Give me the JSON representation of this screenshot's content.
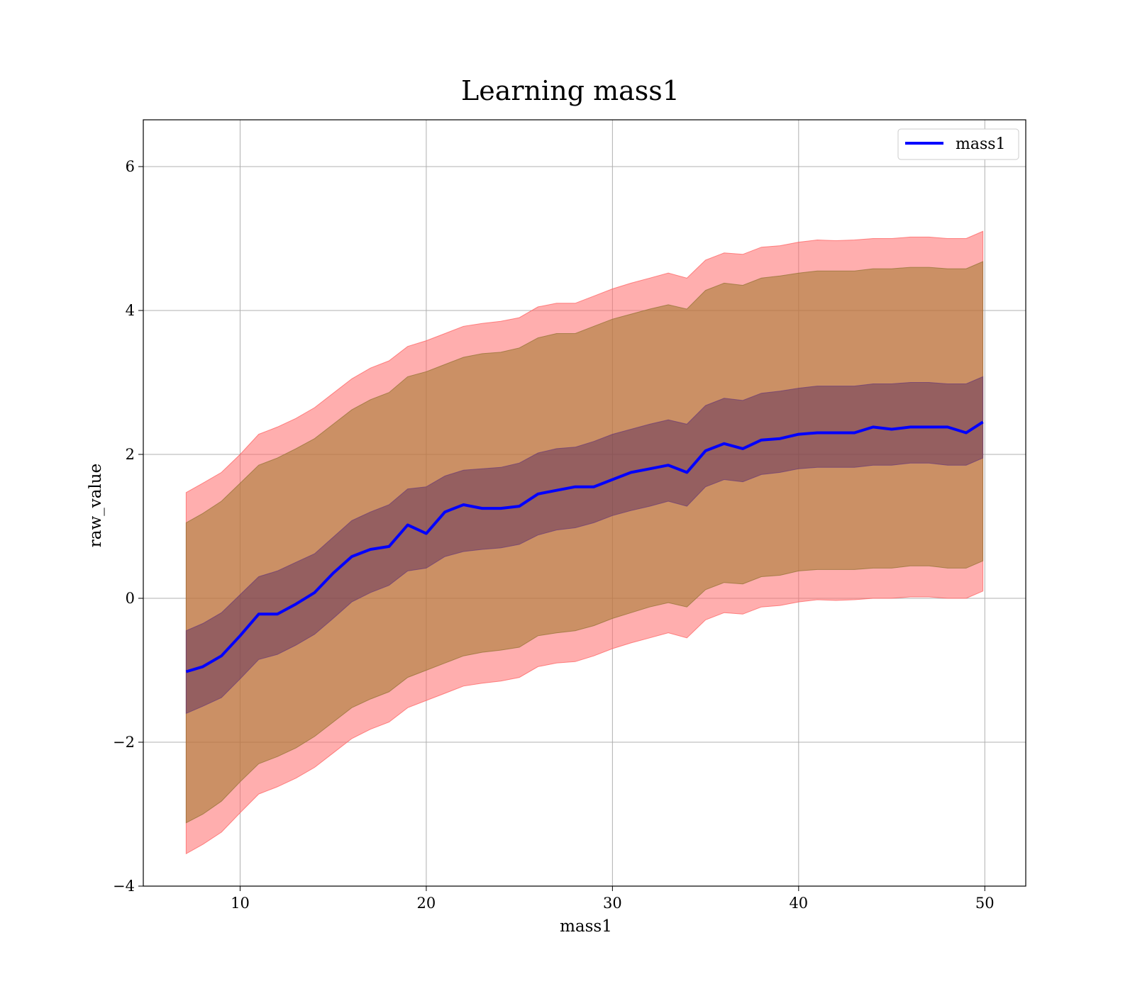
{
  "chart_data": {
    "type": "area",
    "title": "Learning mass1",
    "xlabel": "mass1",
    "ylabel": "raw_value",
    "xlim": [
      4.8,
      52.2
    ],
    "ylim": [
      -4.0,
      6.65
    ],
    "xticks": [
      10,
      20,
      30,
      40,
      50
    ],
    "yticks": [
      -4,
      -2,
      0,
      2,
      4,
      6
    ],
    "xtick_labels": [
      "10",
      "20",
      "30",
      "40",
      "50"
    ],
    "ytick_labels": [
      "−4",
      "−2",
      "0",
      "2",
      "4",
      "6"
    ],
    "grid": true,
    "legend": {
      "position": "top-right",
      "entries": [
        "mass1"
      ]
    },
    "colors": {
      "line": "#0000ff",
      "outer_band": "#ff6b6b",
      "middle_band": "#a0782a",
      "inner_band": "#4a1c5a",
      "grid": "#b0b0b0"
    },
    "x": [
      7.1,
      8,
      9,
      10,
      11,
      12,
      13,
      14,
      15,
      16,
      17,
      18,
      19,
      20,
      21,
      22,
      23,
      24,
      25,
      26,
      27,
      28,
      29,
      30,
      31,
      32,
      33,
      34,
      35,
      36,
      37,
      38,
      39,
      40,
      41,
      42,
      43,
      44,
      45,
      46,
      47,
      48,
      49,
      49.9
    ],
    "series": [
      {
        "name": "mass1",
        "role": "mean",
        "values": [
          -1.02,
          -0.95,
          -0.8,
          -0.52,
          -0.22,
          -0.22,
          -0.08,
          0.08,
          0.35,
          0.58,
          0.68,
          0.72,
          1.02,
          0.9,
          1.2,
          1.3,
          1.25,
          1.25,
          1.28,
          1.45,
          1.5,
          1.55,
          1.55,
          1.65,
          1.75,
          1.8,
          1.85,
          1.75,
          2.05,
          2.15,
          2.08,
          2.2,
          2.22,
          2.28,
          2.3,
          2.3,
          2.3,
          2.38,
          2.35,
          2.38,
          2.38,
          2.38,
          2.3,
          2.45
        ]
      }
    ],
    "bands": [
      {
        "role": "outer",
        "upper": [
          1.47,
          1.6,
          1.75,
          2.0,
          2.28,
          2.38,
          2.5,
          2.65,
          2.85,
          3.05,
          3.2,
          3.3,
          3.5,
          3.58,
          3.68,
          3.78,
          3.82,
          3.85,
          3.9,
          4.05,
          4.1,
          4.1,
          4.2,
          4.3,
          4.38,
          4.45,
          4.52,
          4.45,
          4.7,
          4.8,
          4.78,
          4.88,
          4.9,
          4.95,
          4.98,
          4.97,
          4.98,
          5.0,
          5.0,
          5.02,
          5.02,
          5.0,
          5.0,
          5.1
        ],
        "lower": [
          -3.55,
          -3.42,
          -3.25,
          -2.98,
          -2.72,
          -2.62,
          -2.5,
          -2.35,
          -2.15,
          -1.95,
          -1.82,
          -1.72,
          -1.52,
          -1.42,
          -1.32,
          -1.22,
          -1.18,
          -1.15,
          -1.1,
          -0.95,
          -0.9,
          -0.88,
          -0.8,
          -0.7,
          -0.62,
          -0.55,
          -0.48,
          -0.55,
          -0.3,
          -0.2,
          -0.22,
          -0.12,
          -0.1,
          -0.05,
          -0.02,
          -0.03,
          -0.02,
          0.0,
          0.0,
          0.02,
          0.02,
          0.0,
          0.0,
          0.1
        ]
      },
      {
        "role": "middle",
        "upper": [
          1.05,
          1.18,
          1.35,
          1.6,
          1.85,
          1.95,
          2.08,
          2.22,
          2.42,
          2.62,
          2.76,
          2.86,
          3.08,
          3.15,
          3.25,
          3.35,
          3.4,
          3.42,
          3.48,
          3.62,
          3.68,
          3.68,
          3.78,
          3.88,
          3.95,
          4.02,
          4.08,
          4.02,
          4.28,
          4.38,
          4.35,
          4.45,
          4.48,
          4.52,
          4.55,
          4.55,
          4.55,
          4.58,
          4.58,
          4.6,
          4.6,
          4.58,
          4.58,
          4.68
        ],
        "lower": [
          -3.12,
          -3.0,
          -2.82,
          -2.55,
          -2.3,
          -2.2,
          -2.08,
          -1.92,
          -1.72,
          -1.52,
          -1.4,
          -1.3,
          -1.1,
          -1.0,
          -0.9,
          -0.8,
          -0.75,
          -0.72,
          -0.68,
          -0.52,
          -0.48,
          -0.45,
          -0.38,
          -0.28,
          -0.2,
          -0.12,
          -0.06,
          -0.12,
          0.12,
          0.22,
          0.2,
          0.3,
          0.32,
          0.38,
          0.4,
          0.4,
          0.4,
          0.42,
          0.42,
          0.45,
          0.45,
          0.42,
          0.42,
          0.52
        ]
      },
      {
        "role": "inner",
        "upper": [
          -0.45,
          -0.35,
          -0.2,
          0.05,
          0.3,
          0.38,
          0.5,
          0.62,
          0.85,
          1.08,
          1.2,
          1.3,
          1.52,
          1.55,
          1.7,
          1.78,
          1.8,
          1.82,
          1.88,
          2.02,
          2.08,
          2.1,
          2.18,
          2.28,
          2.35,
          2.42,
          2.48,
          2.42,
          2.68,
          2.78,
          2.75,
          2.85,
          2.88,
          2.92,
          2.95,
          2.95,
          2.95,
          2.98,
          2.98,
          3.0,
          3.0,
          2.98,
          2.98,
          3.08
        ],
        "lower": [
          -1.6,
          -1.5,
          -1.38,
          -1.12,
          -0.85,
          -0.78,
          -0.65,
          -0.5,
          -0.28,
          -0.05,
          0.08,
          0.18,
          0.38,
          0.42,
          0.58,
          0.65,
          0.68,
          0.7,
          0.75,
          0.88,
          0.95,
          0.98,
          1.05,
          1.15,
          1.22,
          1.28,
          1.35,
          1.28,
          1.55,
          1.65,
          1.62,
          1.72,
          1.75,
          1.8,
          1.82,
          1.82,
          1.82,
          1.85,
          1.85,
          1.88,
          1.88,
          1.85,
          1.85,
          1.95
        ]
      }
    ]
  }
}
